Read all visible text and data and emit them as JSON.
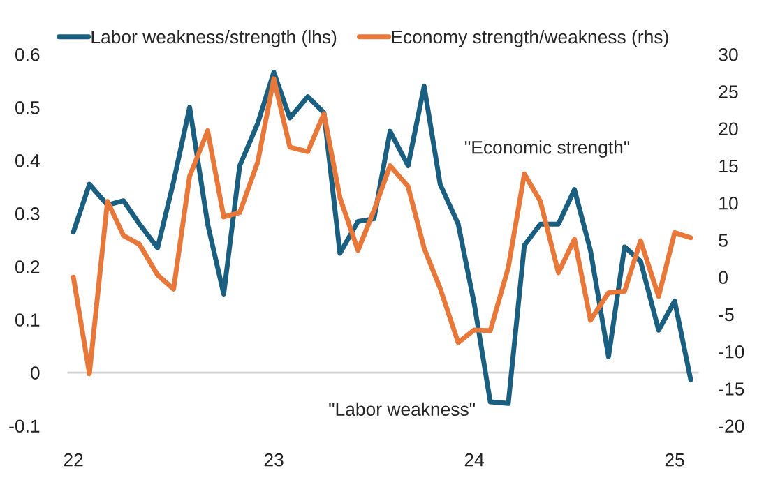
{
  "chart_data": {
    "type": "line",
    "x": [
      22,
      22.08,
      22.17,
      22.25,
      22.33,
      22.42,
      22.5,
      22.58,
      22.67,
      22.75,
      22.83,
      22.92,
      23,
      23.08,
      23.17,
      23.25,
      23.33,
      23.42,
      23.5,
      23.58,
      23.67,
      23.75,
      23.83,
      23.92,
      24,
      24.08,
      24.17,
      24.25,
      24.33,
      24.42,
      24.5,
      24.58,
      24.67,
      24.75,
      24.83,
      24.92,
      25,
      25.08
    ],
    "series": [
      {
        "name": "Labor weakness/strength (lhs)",
        "color": "#1a5e80",
        "values": [
          0.265,
          0.355,
          0.316,
          0.324,
          0.28,
          0.235,
          0.36,
          0.5,
          0.28,
          0.148,
          0.39,
          0.47,
          0.566,
          0.48,
          0.52,
          0.49,
          0.225,
          0.285,
          0.29,
          0.455,
          0.39,
          0.54,
          0.355,
          0.28,
          0.13,
          -0.055,
          -0.058,
          0.24,
          0.28,
          0.28,
          0.345,
          0.23,
          0.03,
          0.237,
          0.21,
          0.08,
          0.135,
          -0.013
        ]
      },
      {
        "name": "Economy strength/weakness (rhs)",
        "color": "#e8773a",
        "axis": "y2",
        "values": [
          0,
          -13,
          10.2,
          5.6,
          4.4,
          0.3,
          -1.6,
          13.6,
          19.7,
          8.1,
          8.7,
          15.5,
          26.7,
          17.5,
          16.9,
          22,
          10.7,
          3.6,
          9,
          15,
          12.2,
          3.9,
          -1.5,
          -8.8,
          -7.1,
          -7.2,
          1.3,
          13.9,
          10.2,
          0.6,
          5.1,
          -5.8,
          -2.1,
          -1.9,
          4.9,
          -2.6,
          6,
          5.3
        ]
      }
    ],
    "xlim": [
      21.97,
      25.12
    ],
    "xticks": [
      22,
      23,
      24,
      25
    ],
    "ylim": [
      -0.1,
      0.6
    ],
    "yticks": [
      -0.1,
      0,
      0.1,
      0.2,
      0.3,
      0.4,
      0.5,
      0.6
    ],
    "y2lim": [
      -20,
      30
    ],
    "y2ticks": [
      -20,
      -15,
      -10,
      -5,
      0,
      5,
      10,
      15,
      20,
      25,
      30
    ],
    "ref_lines": [
      {
        "axis": "y",
        "value": 0,
        "color": "#d0d0d0"
      }
    ],
    "annotations": [
      "\"Economic strength\"",
      "\"Labor weakness\""
    ],
    "grid": false,
    "legend": "top",
    "marker": "none",
    "line_style": "solid"
  }
}
